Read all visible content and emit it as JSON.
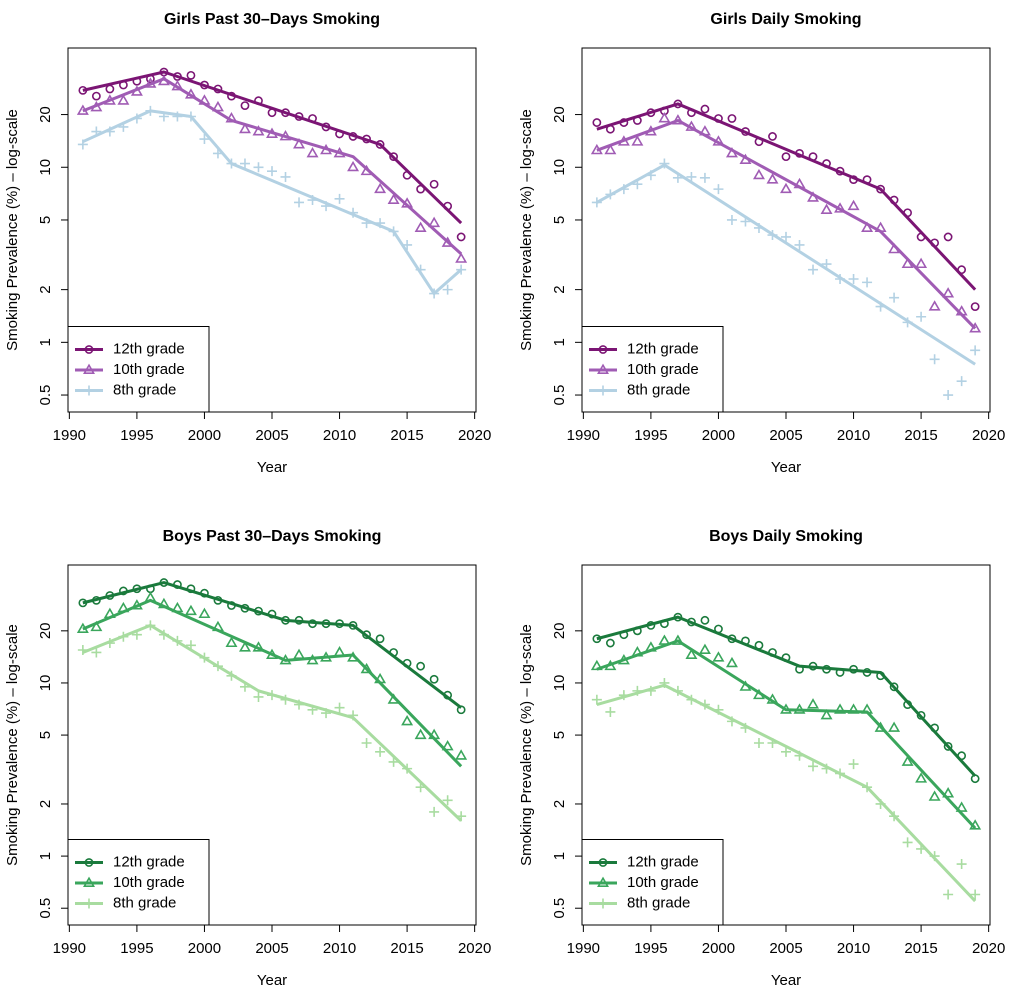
{
  "chart_data": [
    {
      "type": "scatter",
      "title": "Girls Past 30–Days Smoking",
      "x_label": "Year",
      "y_label": "Smoking Prevalence (%) – log-scale",
      "log_y": true,
      "legend": "bottomleft",
      "x": [
        1991,
        1992,
        1993,
        1994,
        1995,
        1996,
        1997,
        1998,
        1999,
        2000,
        2001,
        2002,
        2003,
        2004,
        2005,
        2006,
        2007,
        2008,
        2009,
        2010,
        2011,
        2012,
        2013,
        2014,
        2015,
        2016,
        2017,
        2018,
        2019
      ],
      "xlim": [
        1989.9,
        2020.1
      ],
      "xticks": [
        1990,
        1995,
        2000,
        2005,
        2010,
        2015,
        2020
      ],
      "ylim": [
        0.4,
        48
      ],
      "yticks": [
        0.5,
        1,
        2,
        5,
        10,
        20
      ],
      "series": [
        {
          "name": "12th grade",
          "color": "#7b1574",
          "marker": "circle",
          "values": [
            27.5,
            25.5,
            28,
            29.5,
            31,
            32,
            35,
            33,
            33.5,
            29.5,
            28,
            25.5,
            22.5,
            24,
            20.5,
            20.5,
            19.5,
            19,
            17,
            15.5,
            15,
            14.5,
            13.5,
            11.5,
            9,
            7.5,
            8,
            6,
            4
          ],
          "fit_x": [
            1991,
            1997,
            2013,
            2019
          ],
          "fit_values": [
            27.5,
            35,
            13.5,
            4.8
          ]
        },
        {
          "name": "10th grade",
          "color": "#a05cb4",
          "marker": "triangle",
          "values": [
            21,
            22,
            24,
            24,
            27,
            30,
            31,
            29,
            26,
            24,
            22,
            19,
            16.5,
            16,
            15.5,
            15,
            13.5,
            12,
            12.5,
            12,
            10,
            9.5,
            7.5,
            6.5,
            6.2,
            4.5,
            4.8,
            3.7,
            3
          ],
          "fit_x": [
            1991,
            1997,
            2002,
            2011,
            2019
          ],
          "fit_values": [
            21,
            32,
            18.5,
            11.5,
            3.2
          ]
        },
        {
          "name": "8th grade",
          "color": "#b3d1e3",
          "marker": "plus",
          "values": [
            13.5,
            16,
            16,
            17,
            19,
            21,
            19.5,
            19.5,
            19.5,
            14.5,
            12,
            10.5,
            10.5,
            10,
            9.5,
            8.8,
            6.3,
            6.5,
            6,
            6.6,
            5.5,
            4.8,
            4.8,
            4.3,
            3.6,
            2.6,
            1.9,
            2,
            2.6
          ],
          "fit_x": [
            1991,
            1996,
            1999,
            2002,
            2014,
            2017,
            2019
          ],
          "fit_values": [
            14,
            21,
            19.5,
            10.5,
            4.3,
            1.9,
            2.6
          ]
        }
      ]
    },
    {
      "type": "scatter",
      "title": "Girls Daily Smoking",
      "x_label": "Year",
      "y_label": "Smoking Prevalence (%) – log-scale",
      "log_y": true,
      "legend": "bottomleft",
      "x": [
        1991,
        1992,
        1993,
        1994,
        1995,
        1996,
        1997,
        1998,
        1999,
        2000,
        2001,
        2002,
        2003,
        2004,
        2005,
        2006,
        2007,
        2008,
        2009,
        2010,
        2011,
        2012,
        2013,
        2014,
        2015,
        2016,
        2017,
        2018,
        2019
      ],
      "xlim": [
        1989.9,
        2020.1
      ],
      "xticks": [
        1990,
        1995,
        2000,
        2005,
        2010,
        2015,
        2020
      ],
      "ylim": [
        0.4,
        48
      ],
      "yticks": [
        0.5,
        1,
        2,
        5,
        10,
        20
      ],
      "series": [
        {
          "name": "12th grade",
          "color": "#7b1574",
          "marker": "circle",
          "values": [
            18,
            16.5,
            18,
            18.5,
            20.5,
            21,
            23,
            20.5,
            21.5,
            19,
            19,
            16,
            14,
            15,
            11.5,
            12,
            11.5,
            10.5,
            9.5,
            8.5,
            8.5,
            7.5,
            6.5,
            5.5,
            4,
            3.7,
            4,
            2.6,
            1.6
          ],
          "fit_x": [
            1991,
            1997,
            2012,
            2019
          ],
          "fit_values": [
            16.5,
            23,
            7.5,
            2
          ]
        },
        {
          "name": "10th grade",
          "color": "#a05cb4",
          "marker": "triangle",
          "values": [
            12.5,
            12.5,
            14,
            14,
            16,
            19,
            18.5,
            17,
            16,
            14,
            12,
            11,
            9,
            8.5,
            7.5,
            8,
            6.7,
            5.7,
            5.8,
            6,
            4.5,
            4.5,
            3.4,
            2.8,
            2.8,
            1.6,
            1.9,
            1.5,
            1.2
          ],
          "fit_x": [
            1991,
            1997,
            2012,
            2019
          ],
          "fit_values": [
            12.5,
            18.5,
            4.3,
            1.2
          ]
        },
        {
          "name": "8th grade",
          "color": "#b3d1e3",
          "marker": "plus",
          "values": [
            6.3,
            7,
            7.5,
            8,
            9,
            10.5,
            8.7,
            8.8,
            8.7,
            7.5,
            5,
            4.9,
            4.5,
            4.1,
            4,
            3.6,
            2.6,
            2.8,
            2.3,
            2.3,
            2.2,
            1.6,
            1.8,
            1.3,
            1.4,
            0.8,
            0.5,
            0.6,
            0.9
          ],
          "fit_x": [
            1991,
            1996,
            2019
          ],
          "fit_values": [
            6.3,
            10.3,
            0.75
          ]
        }
      ]
    },
    {
      "type": "scatter",
      "title": "Boys Past 30–Days Smoking",
      "x_label": "Year",
      "y_label": "Smoking Prevalence (%) – log-scale",
      "log_y": true,
      "legend": "bottomleft",
      "x": [
        1991,
        1992,
        1993,
        1994,
        1995,
        1996,
        1997,
        1998,
        1999,
        2000,
        2001,
        2002,
        2003,
        2004,
        2005,
        2006,
        2007,
        2008,
        2009,
        2010,
        2011,
        2012,
        2013,
        2014,
        2015,
        2016,
        2017,
        2018,
        2019
      ],
      "xlim": [
        1989.9,
        2020.1
      ],
      "xticks": [
        1990,
        1995,
        2000,
        2005,
        2010,
        2015,
        2020
      ],
      "ylim": [
        0.4,
        48
      ],
      "yticks": [
        0.5,
        1,
        2,
        5,
        10,
        20
      ],
      "series": [
        {
          "name": "12th grade",
          "color": "#1a7a3c",
          "marker": "circle",
          "values": [
            29,
            30,
            32,
            34,
            35,
            35,
            38,
            37,
            35,
            33,
            30,
            28,
            27,
            26,
            25,
            23,
            23,
            22,
            22,
            22,
            21.5,
            19,
            18,
            15,
            13,
            12.5,
            10.5,
            8.5,
            7
          ],
          "fit_x": [
            1991,
            1997,
            2006,
            2011,
            2019
          ],
          "fit_values": [
            29,
            38,
            23,
            21.5,
            7.2
          ]
        },
        {
          "name": "10th grade",
          "color": "#3aa65c",
          "marker": "triangle",
          "values": [
            20.5,
            21,
            25,
            27,
            28,
            31,
            28.5,
            27,
            26,
            25,
            21,
            17,
            16,
            16,
            14.5,
            13.5,
            14.5,
            13.5,
            14,
            15,
            14,
            12,
            10.5,
            8,
            6,
            5,
            5,
            4.3,
            3.8
          ],
          "fit_x": [
            1991,
            1996,
            2006,
            2011,
            2019
          ],
          "fit_values": [
            20.5,
            30,
            13.5,
            14.5,
            3.3
          ]
        },
        {
          "name": "8th grade",
          "color": "#a8dca0",
          "marker": "plus",
          "values": [
            15.5,
            15,
            17,
            18.5,
            19,
            21.5,
            19,
            17.5,
            16.5,
            14,
            12.5,
            11,
            9.5,
            8.3,
            8.5,
            8,
            7.5,
            7,
            6.7,
            7.2,
            6.5,
            4.5,
            4,
            3.5,
            3.2,
            2.5,
            1.8,
            2.1,
            1.7
          ],
          "fit_x": [
            1991,
            1996,
            2004,
            2011,
            2019
          ],
          "fit_values": [
            15,
            21.5,
            9,
            6.3,
            1.6
          ]
        }
      ]
    },
    {
      "type": "scatter",
      "title": "Boys Daily Smoking",
      "x_label": "Year",
      "y_label": "Smoking Prevalence (%) – log-scale",
      "log_y": true,
      "legend": "bottomleft",
      "x": [
        1991,
        1992,
        1993,
        1994,
        1995,
        1996,
        1997,
        1998,
        1999,
        2000,
        2001,
        2002,
        2003,
        2004,
        2005,
        2006,
        2007,
        2008,
        2009,
        2010,
        2011,
        2012,
        2013,
        2014,
        2015,
        2016,
        2017,
        2018,
        2019
      ],
      "xlim": [
        1989.9,
        2020.1
      ],
      "xticks": [
        1990,
        1995,
        2000,
        2005,
        2010,
        2015,
        2020
      ],
      "ylim": [
        0.4,
        48
      ],
      "yticks": [
        0.5,
        1,
        2,
        5,
        10,
        20
      ],
      "series": [
        {
          "name": "12th grade",
          "color": "#1a7a3c",
          "marker": "circle",
          "values": [
            18,
            17,
            19,
            20,
            21.5,
            22,
            24,
            22.5,
            23,
            20.5,
            18,
            17.5,
            16.5,
            15,
            14,
            12,
            12.5,
            12,
            11.5,
            12,
            11.5,
            11,
            9.5,
            7.5,
            6.5,
            5.5,
            4.3,
            3.8,
            2.8
          ],
          "fit_x": [
            1991,
            1997,
            2006,
            2012,
            2019
          ],
          "fit_values": [
            18,
            24,
            12.5,
            11.5,
            2.9
          ]
        },
        {
          "name": "10th grade",
          "color": "#3aa65c",
          "marker": "triangle",
          "values": [
            12.5,
            12.5,
            13.5,
            15,
            16,
            17.5,
            17.5,
            14.5,
            15.5,
            14,
            13,
            9.5,
            8.5,
            8,
            7,
            7,
            7.5,
            6.5,
            7,
            7,
            7,
            5.5,
            5.5,
            3.5,
            2.8,
            2.2,
            2.3,
            1.9,
            1.5
          ],
          "fit_x": [
            1991,
            1997,
            2005,
            2011,
            2019
          ],
          "fit_values": [
            12,
            17.5,
            7,
            6.8,
            1.45
          ]
        },
        {
          "name": "8th grade",
          "color": "#a8dca0",
          "marker": "plus",
          "values": [
            8,
            6.8,
            8.5,
            9,
            9,
            10,
            9,
            8,
            7.5,
            7,
            6,
            5.5,
            4.5,
            4.5,
            4,
            3.8,
            3.3,
            3.2,
            3,
            3.4,
            2.5,
            2,
            1.7,
            1.2,
            1.1,
            1,
            0.6,
            0.9,
            0.6
          ],
          "fit_x": [
            1991,
            1996,
            2011,
            2019
          ],
          "fit_values": [
            7.5,
            9.7,
            2.5,
            0.55
          ]
        }
      ]
    }
  ]
}
